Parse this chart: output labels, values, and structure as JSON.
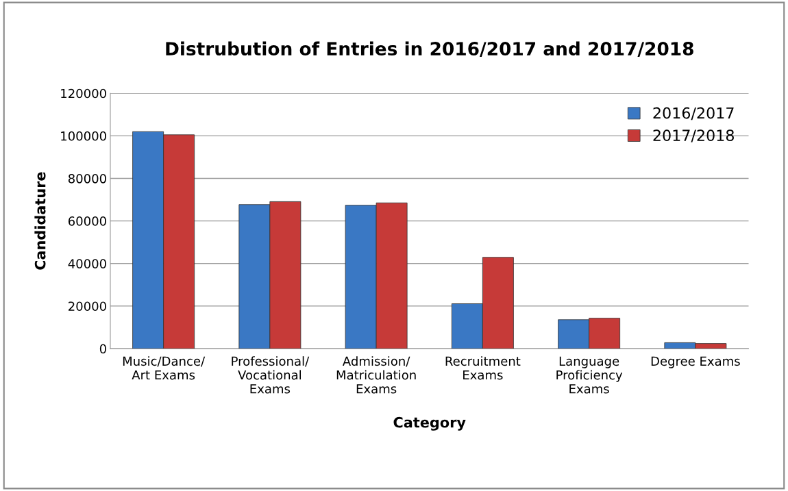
{
  "chart_data": {
    "type": "bar",
    "title": "Distrubution of Entries in 2016/2017 and 2017/2018",
    "xlabel": "Category",
    "ylabel": "Candidature",
    "categories": [
      "Music/Dance/\nArt Exams",
      "Professional/\nVocational\nExams",
      "Admission/\nMatriculation\nExams",
      "Recruitment\nExams",
      "Language\nProficiency\nExams",
      "Degree Exams"
    ],
    "series": [
      {
        "name": "2016/2017",
        "color": "#3a78c4",
        "values": [
          102000,
          67700,
          67400,
          21100,
          13600,
          2800
        ]
      },
      {
        "name": "2017/2018",
        "color": "#c63a38",
        "values": [
          100500,
          69100,
          68500,
          42900,
          14300,
          2400
        ]
      }
    ],
    "ylim": [
      0,
      120000
    ],
    "yticks": [
      0,
      20000,
      40000,
      60000,
      80000,
      100000,
      120000
    ],
    "grid": "y",
    "legend": "top right"
  }
}
